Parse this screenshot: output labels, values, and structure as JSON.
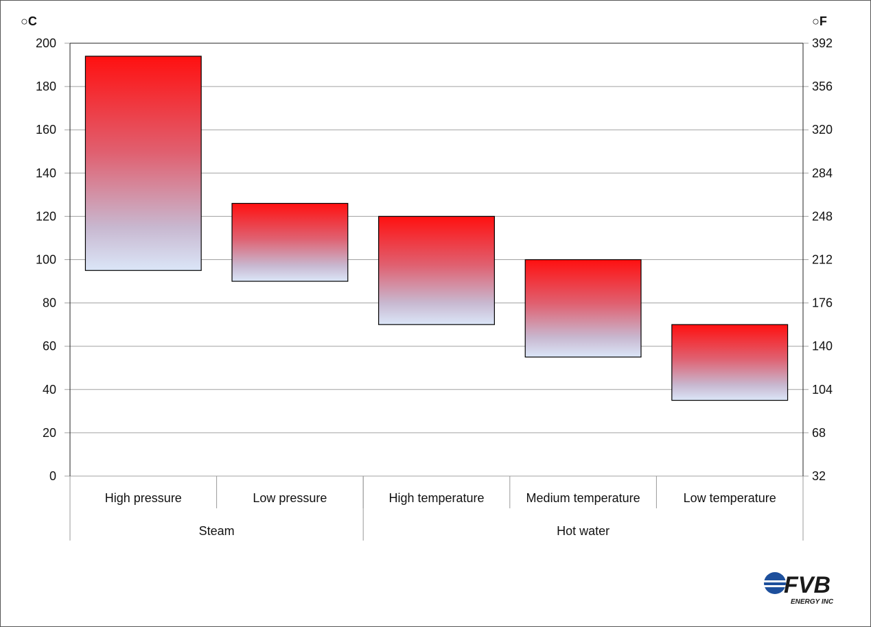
{
  "chart_data": {
    "type": "bar",
    "subtype": "floating-range",
    "left_axis": {
      "unit_label": "○C",
      "ylim": [
        0,
        200
      ],
      "ticks": [
        0,
        20,
        40,
        60,
        80,
        100,
        120,
        140,
        160,
        180,
        200
      ]
    },
    "right_axis": {
      "unit_label": "○F",
      "ticks": [
        32,
        68,
        104,
        140,
        176,
        212,
        248,
        284,
        320,
        356,
        392
      ]
    },
    "grid": true,
    "categories": [
      "High pressure",
      "Low pressure",
      "High temperature",
      "Medium temperature",
      "Low temperature"
    ],
    "groups": [
      {
        "label": "Steam",
        "count": 2
      },
      {
        "label": "Hot water",
        "count": 3
      }
    ],
    "ranges": [
      {
        "low": 95,
        "high": 194
      },
      {
        "low": 90,
        "high": 126
      },
      {
        "low": 70,
        "high": 120
      },
      {
        "low": 55,
        "high": 100
      },
      {
        "low": 35,
        "high": 70
      }
    ],
    "colors": {
      "top": "#ff1010",
      "bottom": "#dbe6f8",
      "grid": "#a0a0a0"
    }
  },
  "logo": {
    "text": "FVB",
    "subtext": "ENERGY INC"
  }
}
